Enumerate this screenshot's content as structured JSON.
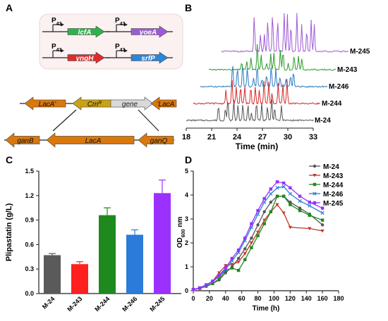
{
  "panels": {
    "A": {
      "letter": "A",
      "promoter_label": "P",
      "promoter_subscript": "43",
      "constructs": [
        {
          "gene": "lcfA",
          "color": "#2db34a"
        },
        {
          "gene": "yoeA",
          "color": "#9c5bd6"
        },
        {
          "gene": "yngH",
          "color": "#e02b2b"
        },
        {
          "gene": "srfP",
          "color": "#2b86d9"
        }
      ],
      "cassette": [
        {
          "label": "LacA'",
          "color": "#d9780d",
          "dir": "left"
        },
        {
          "label": "Cm",
          "sup": "R",
          "color": "#c9a215",
          "dir": "left"
        },
        {
          "label": "gene",
          "color": "#d9d9d9",
          "dir": "right"
        },
        {
          "label": "'LacA",
          "color": "#d9780d",
          "dir": "left"
        }
      ],
      "genome": [
        {
          "label": "ganB",
          "color": "#d9780d",
          "dir": "left"
        },
        {
          "label": "LacA",
          "color": "#d9780d",
          "dir": "left"
        },
        {
          "label": "ganQ",
          "color": "#d9780d",
          "dir": "left"
        }
      ]
    },
    "B": {
      "letter": "B",
      "xlabel": "Time (min)",
      "xticks": [
        18,
        21,
        24,
        27,
        30,
        33
      ],
      "traces": [
        {
          "name": "M-24",
          "color": "#555555"
        },
        {
          "name": "M-244",
          "color": "#d42a2a"
        },
        {
          "name": "M-246",
          "color": "#2b7bc4"
        },
        {
          "name": "M-243",
          "color": "#2a9a2a"
        },
        {
          "name": "M-245",
          "color": "#a05ad6"
        }
      ]
    },
    "C": {
      "letter": "C"
    },
    "D": {
      "letter": "D"
    }
  },
  "chart_data": [
    {
      "type": "bar",
      "panel": "C",
      "ylabel": "Plipastatin (g/L)",
      "categories": [
        "M-24",
        "M-243",
        "M-244",
        "M-246",
        "M-245"
      ],
      "values": [
        0.47,
        0.36,
        0.96,
        0.72,
        1.23
      ],
      "errors": [
        0.02,
        0.03,
        0.09,
        0.06,
        0.16
      ],
      "colors": [
        "#5a5a5a",
        "#ff2020",
        "#1e8a1e",
        "#2b7bd9",
        "#9b30ff"
      ],
      "ylim": [
        0,
        1.5
      ],
      "yticks": [
        "0.0",
        "0.3",
        "0.6",
        "0.9",
        "1.2",
        "1.5"
      ]
    },
    {
      "type": "line",
      "panel": "D",
      "xlabel": "Time (h)",
      "ylabel": "OD",
      "ylabel_sub": "600",
      "ylabel_suffix": " nm",
      "xlim": [
        0,
        180
      ],
      "ylim": [
        0,
        5
      ],
      "xticks": [
        0,
        20,
        40,
        60,
        80,
        100,
        120,
        140,
        160,
        180
      ],
      "yticks": [
        0,
        1,
        2,
        3,
        4,
        5
      ],
      "series": [
        {
          "name": "M-24",
          "color": "#555555",
          "marker": "circle",
          "points": [
            [
              0,
              0.05
            ],
            [
              8,
              0.1
            ],
            [
              16,
              0.18
            ],
            [
              24,
              0.3
            ],
            [
              32,
              0.45
            ],
            [
              40,
              0.75
            ],
            [
              48,
              1.0
            ],
            [
              56,
              1.35
            ],
            [
              64,
              1.75
            ],
            [
              72,
              2.2
            ],
            [
              80,
              2.75
            ],
            [
              88,
              3.3
            ],
            [
              96,
              3.7
            ],
            [
              104,
              3.95
            ],
            [
              112,
              3.95
            ],
            [
              120,
              3.7
            ],
            [
              132,
              3.45
            ],
            [
              144,
              3.2
            ],
            [
              160,
              2.75
            ]
          ]
        },
        {
          "name": "M-243",
          "color": "#c0392b",
          "marker": "triangle-down",
          "points": [
            [
              0,
              0.05
            ],
            [
              8,
              0.1
            ],
            [
              16,
              0.2
            ],
            [
              24,
              0.4
            ],
            [
              32,
              0.75
            ],
            [
              40,
              1.05
            ],
            [
              48,
              1.1
            ],
            [
              56,
              1.2
            ],
            [
              64,
              1.55
            ],
            [
              72,
              2.0
            ],
            [
              80,
              2.45
            ],
            [
              88,
              2.95
            ],
            [
              96,
              3.3
            ],
            [
              104,
              3.6
            ],
            [
              112,
              3.25
            ],
            [
              120,
              2.65
            ],
            [
              144,
              2.6
            ],
            [
              160,
              2.5
            ]
          ]
        },
        {
          "name": "M-244",
          "color": "#1e8a1e",
          "marker": "square",
          "points": [
            [
              0,
              0.05
            ],
            [
              8,
              0.1
            ],
            [
              16,
              0.2
            ],
            [
              24,
              0.3
            ],
            [
              32,
              0.5
            ],
            [
              40,
              0.85
            ],
            [
              48,
              0.95
            ],
            [
              56,
              0.85
            ],
            [
              64,
              1.3
            ],
            [
              72,
              1.8
            ],
            [
              80,
              2.3
            ],
            [
              88,
              2.8
            ],
            [
              96,
              3.3
            ],
            [
              104,
              3.95
            ],
            [
              112,
              3.95
            ],
            [
              120,
              3.6
            ],
            [
              132,
              3.35
            ],
            [
              144,
              3.15
            ],
            [
              160,
              2.95
            ]
          ]
        },
        {
          "name": "M-246",
          "color": "#2b7bd9",
          "marker": "x",
          "points": [
            [
              0,
              0.05
            ],
            [
              8,
              0.12
            ],
            [
              16,
              0.22
            ],
            [
              24,
              0.38
            ],
            [
              32,
              0.6
            ],
            [
              40,
              0.9
            ],
            [
              48,
              1.25
            ],
            [
              56,
              1.6
            ],
            [
              64,
              2.1
            ],
            [
              72,
              2.65
            ],
            [
              80,
              3.2
            ],
            [
              88,
              3.7
            ],
            [
              96,
              4.05
            ],
            [
              104,
              4.3
            ],
            [
              112,
              4.35
            ],
            [
              120,
              4.05
            ],
            [
              132,
              3.75
            ],
            [
              144,
              3.55
            ],
            [
              160,
              3.25
            ]
          ]
        },
        {
          "name": "M-245",
          "color": "#9b30ff",
          "marker": "square",
          "points": [
            [
              0,
              0.05
            ],
            [
              8,
              0.12
            ],
            [
              16,
              0.25
            ],
            [
              24,
              0.4
            ],
            [
              32,
              0.65
            ],
            [
              40,
              0.95
            ],
            [
              48,
              1.35
            ],
            [
              56,
              1.7
            ],
            [
              64,
              2.2
            ],
            [
              72,
              2.8
            ],
            [
              80,
              3.35
            ],
            [
              88,
              3.85
            ],
            [
              96,
              4.25
            ],
            [
              104,
              4.55
            ],
            [
              112,
              4.5
            ],
            [
              120,
              4.3
            ],
            [
              132,
              3.95
            ],
            [
              144,
              3.7
            ],
            [
              160,
              3.45
            ]
          ]
        }
      ]
    }
  ]
}
